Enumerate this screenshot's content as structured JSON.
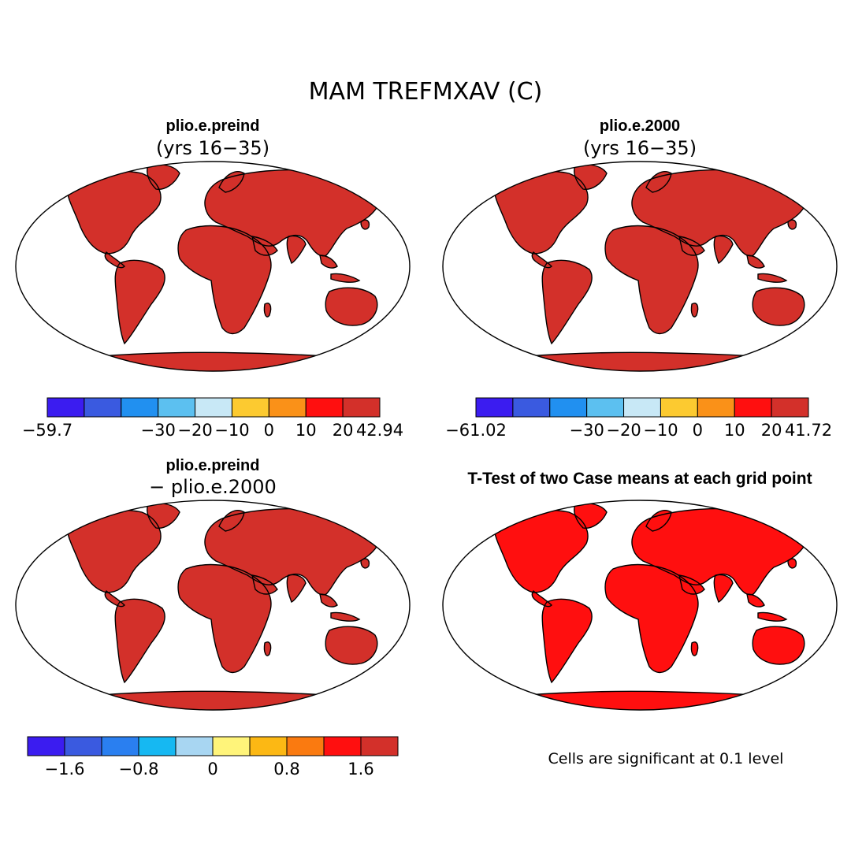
{
  "figure_title": "MAM TREFMXAV (C)",
  "footnote": "Cells are significant at 0.1 level",
  "chart_data": [
    {
      "type": "heatmap",
      "panel": "top-left",
      "title": "plio.e.preind",
      "subtitle": "(yrs 16−35)",
      "colorbar": {
        "colors": [
          "#3b1cf0",
          "#3a5ae0",
          "#2190f0",
          "#5cc0f0",
          "#c8e8f6",
          "#fcca30",
          "#fa9118",
          "#ff0f0f",
          "#d3302a"
        ],
        "tick_labels": [
          "−59.7",
          "−30",
          "−20",
          "−10",
          "0",
          "10",
          "20",
          "42.94"
        ],
        "tick_positions": [
          0,
          3,
          4,
          5,
          6,
          7,
          8,
          10
        ]
      }
    },
    {
      "type": "heatmap",
      "panel": "top-right",
      "title": "plio.e.2000",
      "subtitle": "(yrs 16−35)",
      "colorbar": {
        "colors": [
          "#3b1cf0",
          "#3a5ae0",
          "#2190f0",
          "#5cc0f0",
          "#c8e8f6",
          "#fcca30",
          "#fa9118",
          "#ff0f0f",
          "#d3302a"
        ],
        "tick_labels": [
          "−61.02",
          "−30",
          "−20",
          "−10",
          "0",
          "10",
          "20",
          "41.72"
        ],
        "tick_positions": [
          0,
          3,
          4,
          5,
          6,
          7,
          8,
          10
        ]
      }
    },
    {
      "type": "heatmap",
      "panel": "bottom-left",
      "title": "plio.e.preind",
      "subtitle": "− plio.e.2000",
      "colorbar": {
        "colors": [
          "#3b1cf0",
          "#3a5ae0",
          "#2a7ff0",
          "#16b8f2",
          "#a8d6f2",
          "#fff47a",
          "#fcb814",
          "#fa7a10",
          "#ff0f0f",
          "#d3302a"
        ],
        "tick_labels": [
          "−1.6",
          "−0.8",
          "0",
          "0.8",
          "1.6"
        ],
        "tick_positions": [
          1,
          3,
          5,
          7,
          9
        ]
      }
    },
    {
      "type": "heatmap",
      "panel": "bottom-right",
      "title": "T-Test of two Case means at each grid point",
      "subtitle": "",
      "significant_color": "#ff0f0f"
    }
  ]
}
